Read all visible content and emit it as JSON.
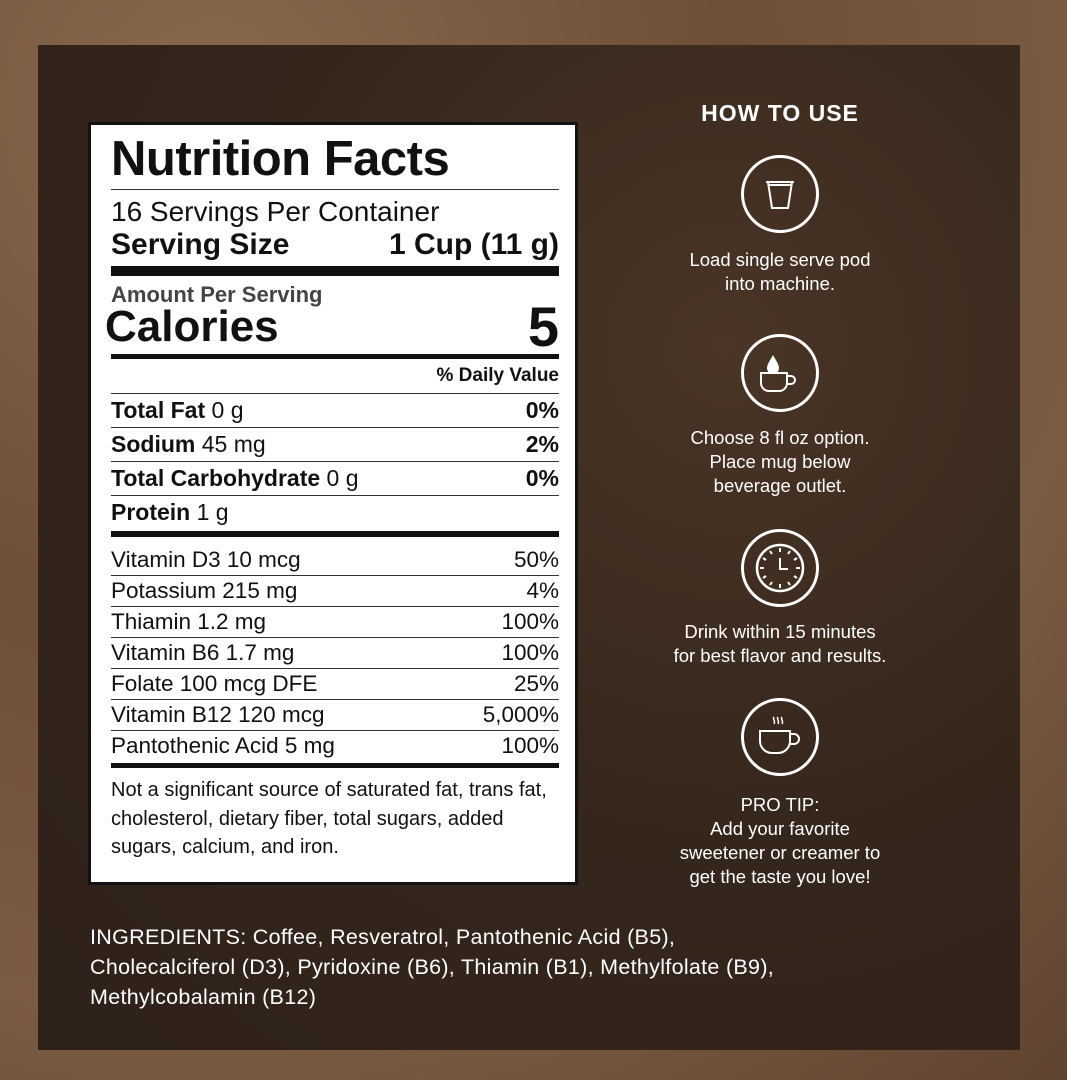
{
  "nutrition": {
    "title": "Nutrition Facts",
    "servings_per_container": "16 Servings Per Container",
    "serving_size_label": "Serving Size",
    "serving_size_value": "1 Cup (11 g)",
    "amount_per_serving": "Amount Per Serving",
    "calories_label": "Calories",
    "calories_value": "5",
    "daily_value_header": "% Daily Value",
    "nutrients": [
      {
        "name": "Total Fat",
        "amount": "0 g",
        "dv": "0%"
      },
      {
        "name": "Sodium",
        "amount": "45 mg",
        "dv": "2%"
      },
      {
        "name": "Total Carbohydrate",
        "amount": "0 g",
        "dv": "0%"
      },
      {
        "name": "Protein",
        "amount": "1 g",
        "dv": ""
      }
    ],
    "vitamins": [
      {
        "name": "Vitamin D3 10 mcg",
        "dv": "50%"
      },
      {
        "name": "Potassium 215 mg",
        "dv": "4%"
      },
      {
        "name": "Thiamin 1.2 mg",
        "dv": "100%"
      },
      {
        "name": "Vitamin B6 1.7 mg",
        "dv": "100%"
      },
      {
        "name": "Folate 100 mcg DFE",
        "dv": "25%"
      },
      {
        "name": "Vitamin B12 120 mcg",
        "dv": "5,000%"
      },
      {
        "name": "Pantothenic Acid 5 mg",
        "dv": "100%"
      }
    ],
    "footnote": "Not a significant source of saturated fat, trans fat, cholesterol, dietary fiber, total sugars, added sugars, calcium, and iron."
  },
  "how_to_use": {
    "title": "HOW TO USE",
    "steps": [
      {
        "icon": "coffee-pod-icon",
        "text1": "Load single serve pod",
        "text2": "into machine."
      },
      {
        "icon": "water-drop-mug-icon",
        "text1": "Choose 8 fl oz option.",
        "text2": "Place mug below",
        "text3": "beverage outlet."
      },
      {
        "icon": "clock-icon",
        "text1": "Drink within 15 minutes",
        "text2": "for best flavor and results."
      },
      {
        "icon": "hot-coffee-cup-icon",
        "text1": "PRO TIP:",
        "text2": "Add your favorite",
        "text3": "sweetener or creamer to",
        "text4": "get the taste you love!"
      }
    ]
  },
  "ingredients": {
    "line1": "INGREDIENTS: Coffee, Resveratrol, Pantothenic Acid (B5),",
    "line2": "Cholecalciferol (D3), Pyridoxine (B6), Thiamin (B1), Methylfolate (B9),",
    "line3": "Methylcobalamin (B12)"
  },
  "colors": {
    "background": "#6e4f37",
    "panel": "#35261c",
    "text": "#ffffff"
  }
}
